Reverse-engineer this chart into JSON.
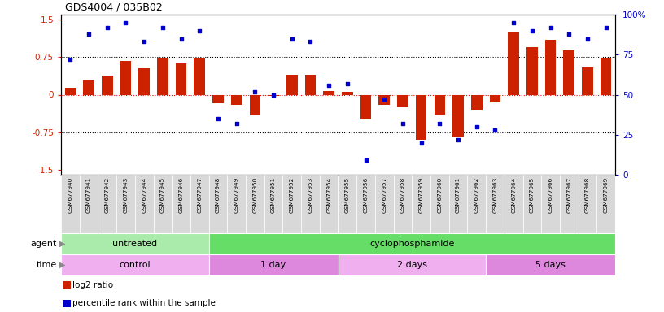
{
  "title": "GDS4004 / 035B02",
  "samples": [
    "GSM677940",
    "GSM677941",
    "GSM677942",
    "GSM677943",
    "GSM677944",
    "GSM677945",
    "GSM677946",
    "GSM677947",
    "GSM677948",
    "GSM677949",
    "GSM677950",
    "GSM677951",
    "GSM677952",
    "GSM677953",
    "GSM677954",
    "GSM677955",
    "GSM677956",
    "GSM677957",
    "GSM677958",
    "GSM677959",
    "GSM677960",
    "GSM677961",
    "GSM677962",
    "GSM677963",
    "GSM677964",
    "GSM677965",
    "GSM677966",
    "GSM677967",
    "GSM677968",
    "GSM677969"
  ],
  "log2_ratio": [
    0.13,
    0.28,
    0.38,
    0.68,
    0.52,
    0.72,
    0.62,
    0.73,
    -0.17,
    -0.2,
    -0.42,
    -0.02,
    0.4,
    0.4,
    0.08,
    0.06,
    -0.5,
    -0.2,
    -0.25,
    -0.9,
    -0.4,
    -0.83,
    -0.3,
    -0.15,
    1.25,
    0.95,
    1.1,
    0.88,
    0.55,
    0.72
  ],
  "percentile": [
    72,
    88,
    92,
    95,
    83,
    92,
    85,
    90,
    35,
    32,
    52,
    50,
    85,
    83,
    56,
    57,
    9,
    47,
    32,
    20,
    32,
    22,
    30,
    28,
    95,
    90,
    92,
    88,
    85,
    92
  ],
  "bar_color": "#cc2200",
  "dot_color": "#0000cc",
  "ylim": [
    -1.6,
    1.6
  ],
  "y2lim": [
    0,
    100
  ],
  "yticks_left": [
    -1.5,
    -0.75,
    0,
    0.75,
    1.5
  ],
  "yticks_right": [
    0,
    25,
    50,
    75,
    100
  ],
  "hline_y": [
    0.75,
    0,
    -0.75
  ],
  "hline_colors": [
    "black",
    "red",
    "black"
  ],
  "hline_styles": [
    "dotted",
    "dotted",
    "dotted"
  ],
  "agent_groups": [
    {
      "label": "untreated",
      "start": 0,
      "end": 7,
      "color": "#aaeaaa"
    },
    {
      "label": "cyclophosphamide",
      "start": 8,
      "end": 29,
      "color": "#66dd66"
    }
  ],
  "time_groups": [
    {
      "label": "control",
      "start": 0,
      "end": 7,
      "color": "#f0b0f0"
    },
    {
      "label": "1 day",
      "start": 8,
      "end": 14,
      "color": "#dd88dd"
    },
    {
      "label": "2 days",
      "start": 15,
      "end": 22,
      "color": "#f0b0f0"
    },
    {
      "label": "5 days",
      "start": 23,
      "end": 29,
      "color": "#dd88dd"
    }
  ],
  "legend_items": [
    {
      "label": "log2 ratio",
      "color": "#cc2200"
    },
    {
      "label": "percentile rank within the sample",
      "color": "#0000cc"
    }
  ],
  "bg_color": "#ffffff",
  "plot_bg": "#ffffff",
  "tick_bg": "#d8d8d8"
}
